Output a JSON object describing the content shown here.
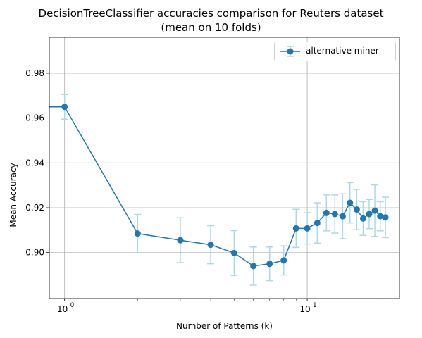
{
  "chart_data": {
    "type": "line",
    "title_line1": "DecisionTreeClassifier accuracies comparison for Reuters dataset",
    "title_line2": "(mean on 10 folds)",
    "xlabel": "Number of Patterns (k)",
    "ylabel": "Mean Accuracy",
    "x_scale": "log",
    "xlim": [
      0.865,
      24
    ],
    "ylim": [
      0.8795,
      0.996
    ],
    "grid": true,
    "legend_position": "top-right",
    "x_tick_labels": [
      {
        "value": 1,
        "base": "10",
        "exp": "0"
      },
      {
        "value": 10,
        "base": "10",
        "exp": "1"
      }
    ],
    "y_ticks": [
      0.9,
      0.92,
      0.94,
      0.96,
      0.98
    ],
    "y_tick_labels": [
      "0.90",
      "0.92",
      "0.94",
      "0.96",
      "0.98"
    ],
    "series": [
      {
        "name": "alternative miner",
        "color": "#1f77b4",
        "error_color": "#add8e6",
        "x": [
          1,
          2,
          3,
          4,
          5,
          6,
          7,
          8,
          9,
          10,
          11,
          12,
          13,
          14,
          15,
          16,
          17,
          18,
          19,
          20,
          21
        ],
        "y": [
          0.965,
          0.9085,
          0.9055,
          0.9035,
          0.8998,
          0.894,
          0.895,
          0.8965,
          0.9108,
          0.9108,
          0.9132,
          0.9177,
          0.9172,
          0.9162,
          0.9222,
          0.9192,
          0.9152,
          0.9172,
          0.9187,
          0.9162,
          0.9157
        ],
        "err": [
          0.0055,
          0.0085,
          0.01,
          0.0085,
          0.01,
          0.0085,
          0.0075,
          0.0065,
          0.0085,
          0.007,
          0.009,
          0.008,
          0.0085,
          0.01,
          0.009,
          0.009,
          0.0075,
          0.0065,
          0.0115,
          0.0065,
          0.009
        ]
      }
    ]
  }
}
